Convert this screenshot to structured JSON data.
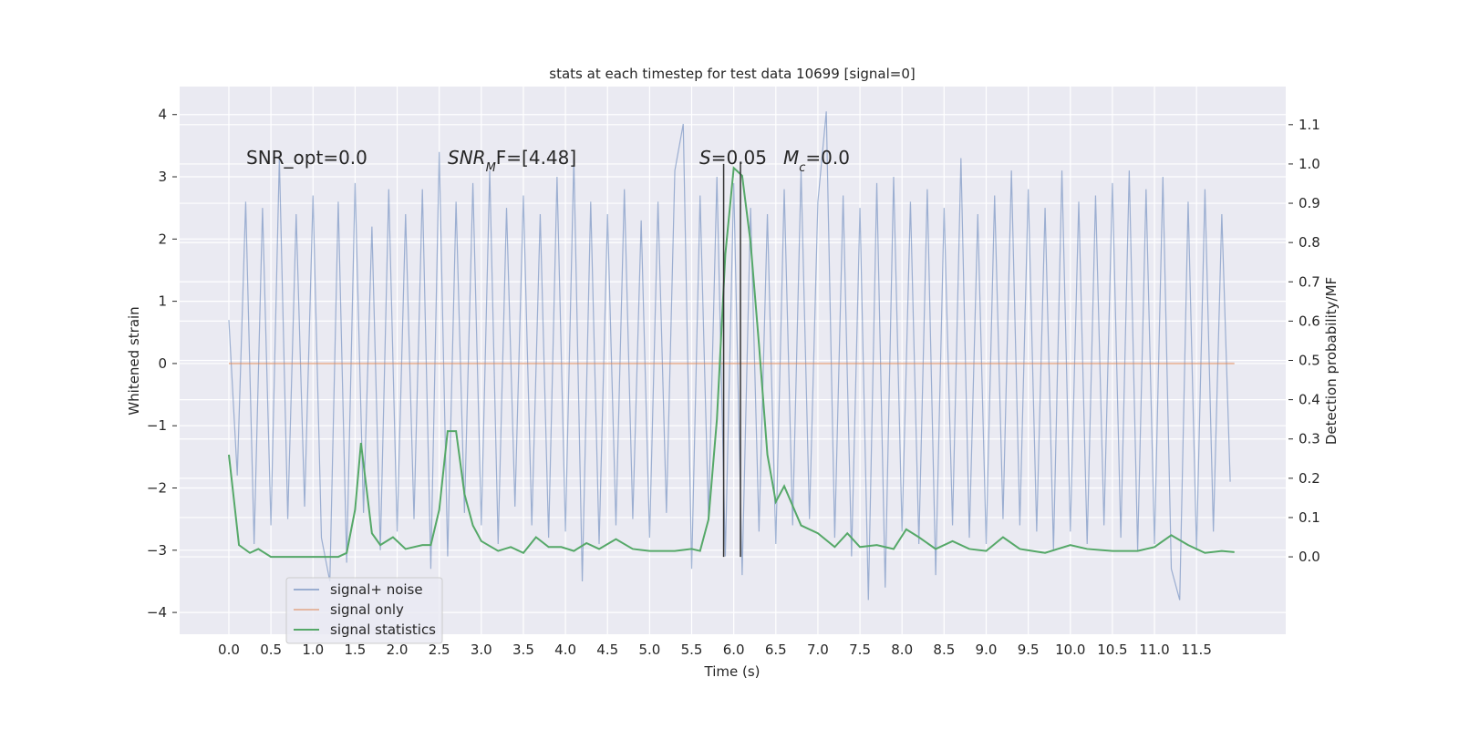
{
  "chart_data": {
    "type": "line",
    "title": "stats at each timestep for test data 10699 [signal=0]",
    "xlabel": "Time (s)",
    "ylabel": "Whitened strain",
    "y2label": "Detection probability/MF",
    "xlim": [
      -0.585,
      12.56
    ],
    "ylim": [
      -4.35,
      4.45
    ],
    "y2lim": [
      -0.197,
      1.197
    ],
    "xticks": [
      {
        "value": 0,
        "label": "0.0"
      },
      0.5,
      {
        "value": 1,
        "label": "1.0"
      },
      1.5,
      {
        "value": 2,
        "label": "2.0"
      },
      2.5,
      {
        "value": 3,
        "label": "3.0"
      },
      3.5,
      {
        "value": 4,
        "label": "4.0"
      },
      4.5,
      {
        "value": 5,
        "label": "5.0"
      },
      5.5,
      {
        "value": 6,
        "label": "6.0"
      },
      6.5,
      {
        "value": 7,
        "label": "7.0"
      },
      7.5,
      {
        "value": 8,
        "label": "8.0"
      },
      8.5,
      {
        "value": 9,
        "label": "9.0"
      },
      9.5,
      {
        "value": 10,
        "label": "10.0"
      },
      10.5,
      {
        "value": 11,
        "label": "11.0"
      },
      11.5
    ],
    "yticks": [
      {
        "value": -4,
        "label": "−4"
      },
      {
        "value": -3,
        "label": "−3"
      },
      {
        "value": -2,
        "label": "−2"
      },
      {
        "value": -1,
        "label": "−1"
      },
      0,
      1,
      2,
      3,
      4
    ],
    "y2ticks": [
      {
        "value": 0,
        "label": "0.0"
      },
      0.1,
      0.2,
      0.3,
      0.4,
      0.5,
      0.6,
      0.7,
      0.8,
      0.9,
      {
        "value": 1,
        "label": "1.0"
      },
      1.1
    ],
    "grid": true,
    "legend": "lower left",
    "series": [
      {
        "name": "signal+ noise",
        "color": "#4c72b0",
        "x": [
          0.0,
          0.1,
          0.2,
          0.3,
          0.4,
          0.5,
          0.6,
          0.7,
          0.8,
          0.9,
          1.0,
          1.1,
          1.2,
          1.3,
          1.4,
          1.5,
          1.6,
          1.7,
          1.8,
          1.9,
          2.0,
          2.1,
          2.2,
          2.3,
          2.4,
          2.5,
          2.6,
          2.7,
          2.8,
          2.9,
          3.0,
          3.1,
          3.2,
          3.3,
          3.4,
          3.5,
          3.6,
          3.7,
          3.8,
          3.9,
          4.0,
          4.1,
          4.2,
          4.3,
          4.4,
          4.5,
          4.6,
          4.7,
          4.8,
          4.9,
          5.0,
          5.1,
          5.2,
          5.3,
          5.4,
          5.5,
          5.6,
          5.7,
          5.8,
          5.9,
          6.0,
          6.1,
          6.2,
          6.3,
          6.4,
          6.5,
          6.6,
          6.7,
          6.8,
          6.9,
          7.0,
          7.1,
          7.2,
          7.3,
          7.4,
          7.5,
          7.6,
          7.7,
          7.8,
          7.9,
          8.0,
          8.1,
          8.2,
          8.3,
          8.4,
          8.5,
          8.6,
          8.7,
          8.8,
          8.9,
          9.0,
          9.1,
          9.2,
          9.3,
          9.4,
          9.5,
          9.6,
          9.7,
          9.8,
          9.9,
          10.0,
          10.1,
          10.2,
          10.3,
          10.4,
          10.5,
          10.6,
          10.7,
          10.8,
          10.9,
          11.0,
          11.1,
          11.2,
          11.3,
          11.4,
          11.5,
          11.6,
          11.7,
          11.8,
          11.9
        ],
        "values": [
          0.7,
          -1.8,
          2.6,
          -2.9,
          2.5,
          -2.6,
          3.3,
          -2.5,
          2.4,
          -2.3,
          2.7,
          -2.8,
          -3.5,
          2.6,
          -3.2,
          2.9,
          -2.4,
          2.2,
          -3.0,
          2.8,
          -2.7,
          2.4,
          -2.5,
          2.8,
          -3.3,
          3.4,
          -3.1,
          2.6,
          -2.4,
          2.9,
          -2.6,
          3.1,
          -2.9,
          2.5,
          -2.3,
          2.7,
          -2.6,
          2.4,
          -2.8,
          3.0,
          -2.7,
          3.3,
          -3.5,
          2.6,
          -2.9,
          2.4,
          -2.6,
          2.8,
          -2.5,
          2.3,
          -2.8,
          2.6,
          -2.4,
          3.1,
          3.85,
          -3.3,
          2.7,
          -2.5,
          3.0,
          -3.1,
          2.9,
          -3.4,
          2.5,
          -2.7,
          2.4,
          -2.9,
          2.8,
          -2.6,
          3.1,
          -2.5,
          2.6,
          4.05,
          -2.8,
          2.7,
          -3.1,
          2.5,
          -3.8,
          2.9,
          -3.6,
          3.0,
          -2.7,
          2.6,
          -2.9,
          2.8,
          -3.4,
          2.5,
          -2.6,
          3.3,
          -2.8,
          2.4,
          -2.9,
          2.7,
          -2.5,
          3.1,
          -2.6,
          2.8,
          -2.7,
          2.5,
          -3.0,
          3.1,
          -2.7,
          2.6,
          -2.9,
          2.7,
          -2.6,
          2.9,
          -2.8,
          3.1,
          -3.0,
          2.8,
          -2.9,
          3.0,
          -3.3,
          -3.8,
          2.6,
          -3.0,
          2.8,
          -2.7,
          2.4,
          -1.9
        ]
      },
      {
        "name": "signal only",
        "color": "#dd8452",
        "x": [
          0.0,
          11.95
        ],
        "values": [
          0,
          0
        ]
      },
      {
        "name": "signal statistics",
        "color": "#55a868",
        "axis": "y2",
        "x": [
          0.0,
          0.05,
          0.12,
          0.25,
          0.35,
          0.5,
          0.7,
          1.0,
          1.3,
          1.4,
          1.5,
          1.57,
          1.7,
          1.8,
          1.95,
          2.1,
          2.3,
          2.4,
          2.5,
          2.6,
          2.7,
          2.8,
          2.9,
          3.0,
          3.2,
          3.35,
          3.5,
          3.65,
          3.8,
          3.95,
          4.1,
          4.25,
          4.4,
          4.6,
          4.8,
          5.0,
          5.3,
          5.5,
          5.6,
          5.7,
          5.8,
          5.9,
          6.0,
          6.1,
          6.2,
          6.3,
          6.4,
          6.5,
          6.6,
          6.7,
          6.8,
          7.0,
          7.2,
          7.35,
          7.5,
          7.7,
          7.9,
          8.05,
          8.2,
          8.4,
          8.6,
          8.8,
          9.0,
          9.2,
          9.4,
          9.7,
          10.0,
          10.2,
          10.5,
          10.8,
          11.0,
          11.2,
          11.4,
          11.6,
          11.8,
          11.95
        ],
        "values": [
          0.26,
          0.165,
          0.03,
          0.01,
          0.02,
          0.0,
          0.0,
          0.0,
          0.0,
          0.01,
          0.12,
          0.29,
          0.06,
          0.03,
          0.05,
          0.02,
          0.03,
          0.03,
          0.12,
          0.32,
          0.32,
          0.16,
          0.08,
          0.04,
          0.015,
          0.025,
          0.01,
          0.05,
          0.025,
          0.025,
          0.015,
          0.035,
          0.02,
          0.045,
          0.02,
          0.015,
          0.015,
          0.02,
          0.015,
          0.095,
          0.35,
          0.77,
          0.99,
          0.97,
          0.8,
          0.54,
          0.26,
          0.14,
          0.18,
          0.13,
          0.08,
          0.06,
          0.025,
          0.06,
          0.025,
          0.03,
          0.02,
          0.07,
          0.05,
          0.02,
          0.04,
          0.02,
          0.015,
          0.05,
          0.02,
          0.01,
          0.03,
          0.02,
          0.015,
          0.015,
          0.025,
          0.055,
          0.03,
          0.01,
          0.015,
          0.012
        ]
      }
    ],
    "vlines": {
      "x": [
        5.88,
        6.08
      ],
      "y2range": [
        0,
        1.0
      ],
      "color": "#333333"
    },
    "annotations": [
      [
        {
          "text": "SNR_opt=0.0"
        }
      ],
      [
        {
          "text": "SNR",
          "italic": true
        },
        {
          "text": "M",
          "italic": true,
          "sub": true
        },
        {
          "text": "F=[4.48]"
        }
      ],
      [
        {
          "text": "S",
          "italic": true
        },
        {
          "text": "=0.05"
        }
      ],
      [
        {
          "text": "M",
          "italic": true
        },
        {
          "text": "c",
          "italic": true,
          "sub": true
        },
        {
          "text": "=0.0"
        }
      ]
    ]
  }
}
